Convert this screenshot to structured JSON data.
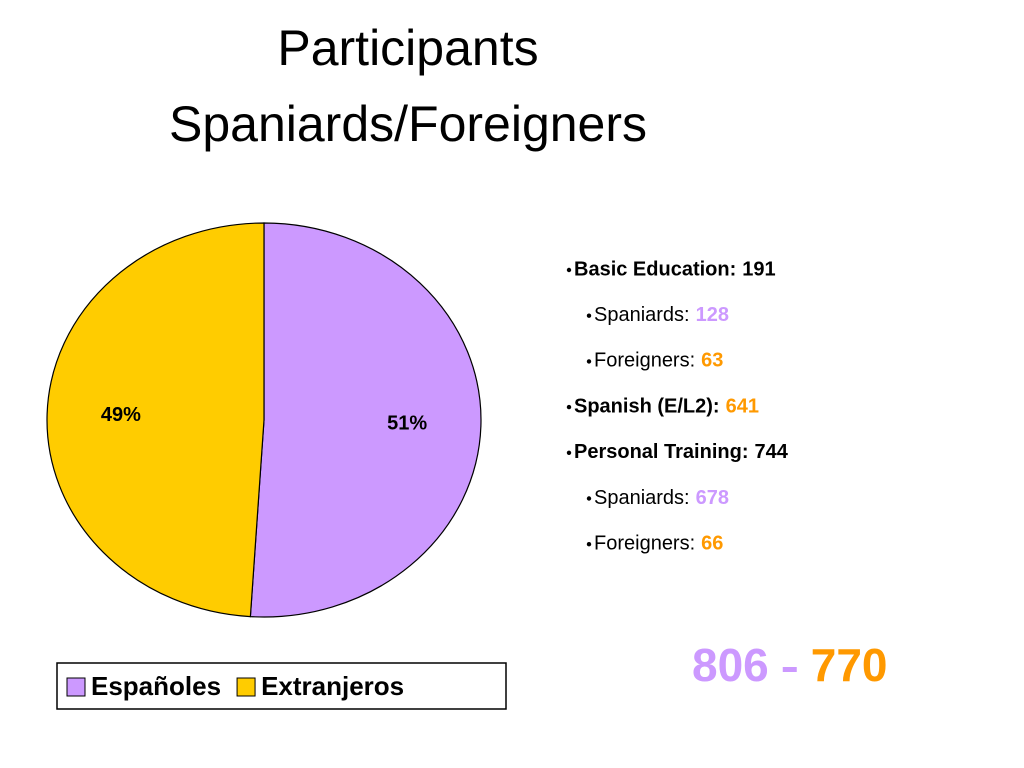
{
  "title_lines": [
    "Participants",
    "Spaniards/Foreigners"
  ],
  "chart_data": {
    "type": "pie",
    "categories": [
      "Españoles",
      "Extranjeros"
    ],
    "values": [
      51,
      49
    ],
    "value_labels": [
      "51%",
      "49%"
    ],
    "colors": [
      "#cc99ff",
      "#ffcc00"
    ],
    "legend": "bottom"
  },
  "breakdown": [
    {
      "label": "Basic Education:",
      "value": 191,
      "level": 1,
      "bold": true,
      "color": "#000000"
    },
    {
      "label": "Spaniards:",
      "value": 128,
      "level": 2,
      "bold": false,
      "color": "#cc99ff"
    },
    {
      "label": "Foreigners:",
      "value": 63,
      "level": 2,
      "bold": false,
      "color": "#ff9900"
    },
    {
      "label": "Spanish (E/L2):",
      "value": 641,
      "level": 1,
      "bold": true,
      "color": "#ff9900"
    },
    {
      "label": "Personal Training:",
      "value": 744,
      "level": 1,
      "bold": true,
      "color": "#000000"
    },
    {
      "label": "Spaniards:",
      "value": 678,
      "level": 2,
      "bold": false,
      "color": "#cc99ff"
    },
    {
      "label": "Foreigners:",
      "value": 66,
      "level": 2,
      "bold": false,
      "color": "#ff9900"
    }
  ],
  "totals": {
    "spaniards": 806,
    "foreigners": 770,
    "spaniards_color": "#cc99ff",
    "foreigners_color": "#ff9900"
  }
}
